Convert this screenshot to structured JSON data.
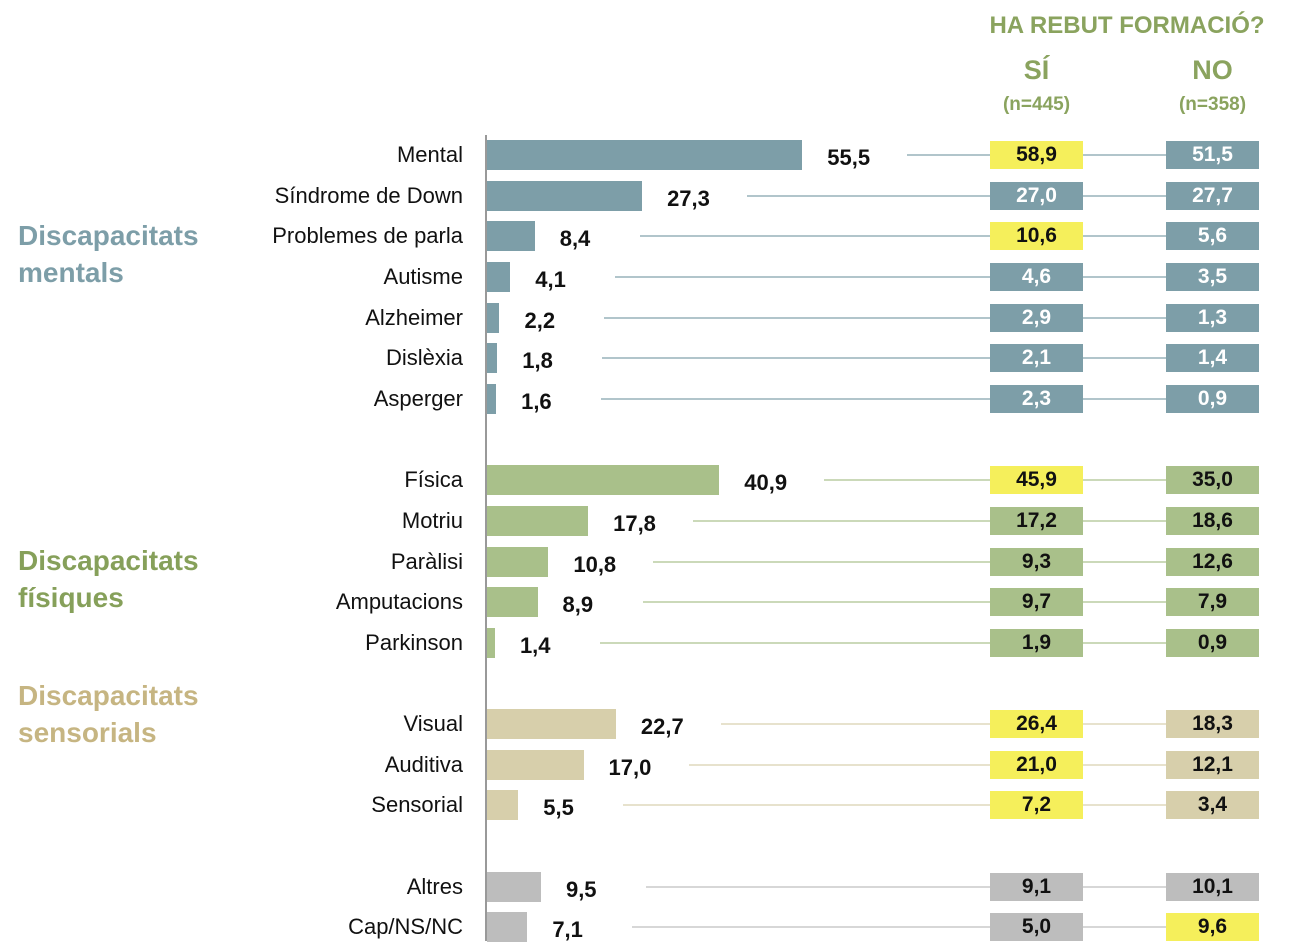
{
  "chart_data": {
    "type": "bar",
    "header": "HA REBUT FORMACIÓ?",
    "columns": [
      {
        "name": "SÍ",
        "n": "(n=445)"
      },
      {
        "name": "NO",
        "n": "(n=358)"
      }
    ],
    "highlight_color": "#f5ef5b",
    "groups": [
      {
        "name": "Discapacitats mentals",
        "color": "#7d9ea8",
        "name_color": "#7d9ea8",
        "box_text": "#ffffff",
        "categories": [
          "Mental",
          "Síndrome de Down",
          "Problemes de parla",
          "Autisme",
          "Alzheimer",
          "Dislèxia",
          "Asperger"
        ],
        "values": [
          55.5,
          27.3,
          8.4,
          4.1,
          2.2,
          1.8,
          1.6
        ],
        "value_labels": [
          "55,5",
          "27,3",
          "8,4",
          "4,1",
          "2,2",
          "1,8",
          "1,6"
        ],
        "columns": [
          {
            "values": [
              58.9,
              27.0,
              10.6,
              4.6,
              2.9,
              2.1,
              2.3
            ],
            "value_labels": [
              "58,9",
              "27,0",
              "10,6",
              "4,6",
              "2,9",
              "2,1",
              "2,3"
            ],
            "highlight": [
              true,
              false,
              true,
              false,
              false,
              false,
              false
            ]
          },
          {
            "values": [
              51.5,
              27.7,
              5.6,
              3.5,
              1.3,
              1.4,
              0.9
            ],
            "value_labels": [
              "51,5",
              "27,7",
              "5,6",
              "3,5",
              "1,3",
              "1,4",
              "0,9"
            ],
            "highlight": [
              false,
              false,
              false,
              false,
              false,
              false,
              false
            ]
          }
        ]
      },
      {
        "name": "Discapacitats físiques",
        "color": "#a9c08a",
        "name_color": "#86a05a",
        "box_text": "#111111",
        "categories": [
          "Física",
          "Motriu",
          "Paràlisi",
          "Amputacions",
          "Parkinson"
        ],
        "values": [
          40.9,
          17.8,
          10.8,
          8.9,
          1.4
        ],
        "value_labels": [
          "40,9",
          "17,8",
          "10,8",
          "8,9",
          "1,4"
        ],
        "columns": [
          {
            "values": [
              45.9,
              17.2,
              9.3,
              9.7,
              1.9
            ],
            "value_labels": [
              "45,9",
              "17,2",
              "9,3",
              "9,7",
              "1,9"
            ],
            "highlight": [
              true,
              false,
              false,
              false,
              false
            ]
          },
          {
            "values": [
              35.0,
              18.6,
              12.6,
              7.9,
              0.9
            ],
            "value_labels": [
              "35,0",
              "18,6",
              "12,6",
              "7,9",
              "0,9"
            ],
            "highlight": [
              false,
              false,
              false,
              false,
              false
            ]
          }
        ]
      },
      {
        "name": "Discapacitats sensorials",
        "color": "#d7cfab",
        "name_color": "#c6b582",
        "box_text": "#111111",
        "categories": [
          "Visual",
          "Auditiva",
          "Sensorial"
        ],
        "values": [
          22.7,
          17.0,
          5.5
        ],
        "value_labels": [
          "22,7",
          "17,0",
          "5,5"
        ],
        "columns": [
          {
            "values": [
              26.4,
              21.0,
              7.2
            ],
            "value_labels": [
              "26,4",
              "21,0",
              "7,2"
            ],
            "highlight": [
              true,
              true,
              true
            ]
          },
          {
            "values": [
              18.3,
              12.1,
              3.4
            ],
            "value_labels": [
              "18,3",
              "12,1",
              "3,4"
            ],
            "highlight": [
              false,
              false,
              false
            ]
          }
        ]
      },
      {
        "color": "#bdbdbd",
        "box_text": "#111111",
        "categories": [
          "Altres",
          "Cap/NS/NC"
        ],
        "values": [
          9.5,
          7.1
        ],
        "value_labels": [
          "9,5",
          "7,1"
        ],
        "columns": [
          {
            "values": [
              9.1,
              5.0
            ],
            "value_labels": [
              "9,1",
              "5,0"
            ],
            "highlight": [
              false,
              false
            ]
          },
          {
            "values": [
              10.1,
              9.6
            ],
            "value_labels": [
              "10,1",
              "9,6"
            ],
            "highlight": [
              false,
              true
            ]
          }
        ]
      }
    ]
  }
}
